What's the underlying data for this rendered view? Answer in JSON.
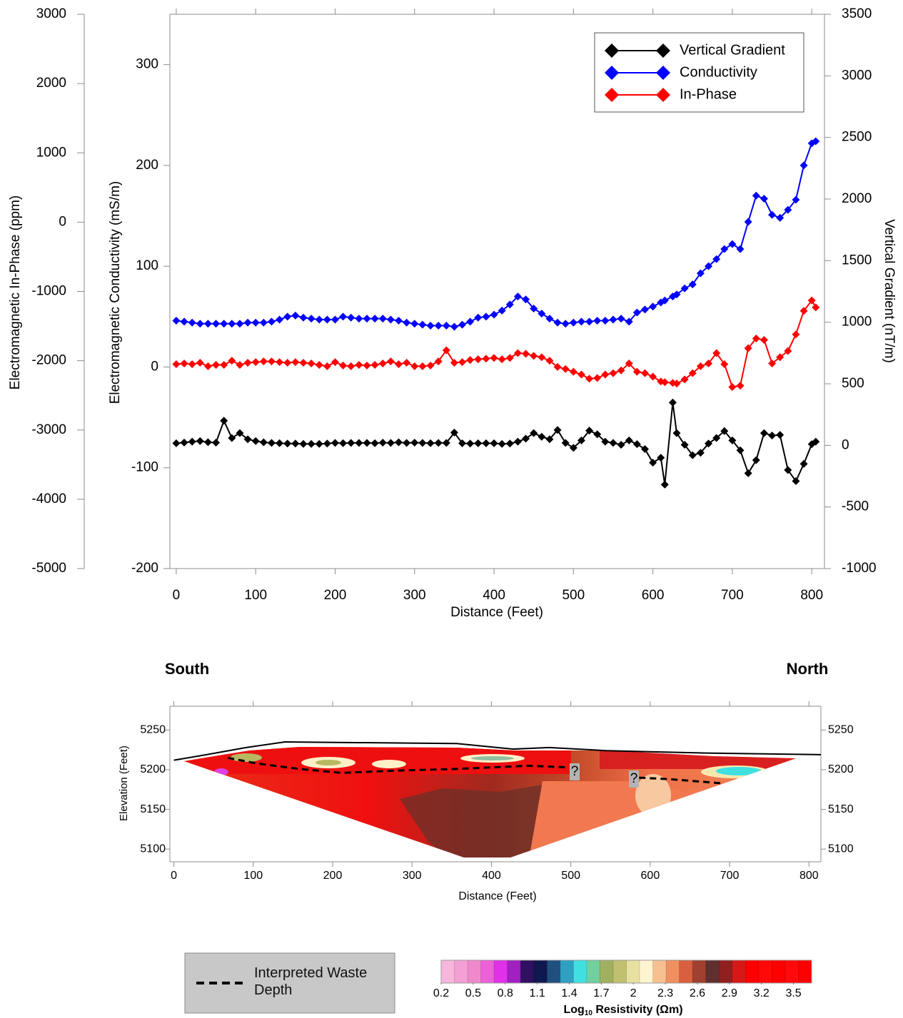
{
  "chart_data": [
    {
      "type": "line",
      "x_label": "Distance (Feet)",
      "y_label": "Electromagnetic Conductivity (mS/m)",
      "y2_label": "Vertical Gradient (nT/m)",
      "y3_label": "Electromagnetic In-Phase (ppm)",
      "x": [
        0,
        10,
        20,
        30,
        40,
        50,
        60,
        70,
        80,
        90,
        100,
        110,
        120,
        130,
        140,
        150,
        160,
        170,
        180,
        190,
        200,
        210,
        220,
        230,
        240,
        250,
        260,
        270,
        280,
        290,
        300,
        310,
        320,
        330,
        340,
        350,
        360,
        370,
        380,
        390,
        400,
        410,
        420,
        430,
        440,
        450,
        460,
        470,
        480,
        490,
        500,
        510,
        520,
        530,
        540,
        550,
        560,
        570,
        580,
        590,
        600,
        610,
        615,
        625,
        630,
        640,
        650,
        660,
        670,
        680,
        690,
        700,
        710,
        720,
        730,
        740,
        750,
        760,
        770,
        780,
        790,
        800,
        805
      ],
      "xlim": [
        -8,
        816
      ],
      "xticks": [
        0,
        100,
        200,
        300,
        400,
        500,
        600,
        700,
        800
      ],
      "ylim": [
        -200,
        350
      ],
      "yticks": [
        -200,
        -100,
        0,
        100,
        200,
        300
      ],
      "y2lim": [
        -1000,
        3500
      ],
      "y2ticks": [
        -1000,
        -500,
        0,
        500,
        1000,
        1500,
        2000,
        2500,
        3000,
        3500
      ],
      "y3lim": [
        -5000,
        3000
      ],
      "y3ticks": [
        -5000,
        -4000,
        -3000,
        -2000,
        -1000,
        0,
        1000,
        2000,
        3000
      ],
      "legend": "upper right",
      "marker": "diamond",
      "series": [
        {
          "name": "Vertical Gradient",
          "color": "#000000",
          "axis": "y2",
          "values": [
            17,
            23,
            30,
            35,
            26,
            22,
            200,
            60,
            100,
            50,
            35,
            25,
            20,
            18,
            15,
            15,
            12,
            12,
            12,
            15,
            20,
            18,
            20,
            20,
            20,
            18,
            22,
            20,
            25,
            20,
            22,
            20,
            18,
            20,
            20,
            104,
            17,
            15,
            17,
            17,
            17,
            12,
            15,
            30,
            55,
            100,
            70,
            50,
            125,
            20,
            -20,
            40,
            120,
            90,
            30,
            20,
            5,
            40,
            10,
            -30,
            -140,
            -100,
            -318,
            348,
            100,
            5,
            -80,
            -60,
            15,
            60,
            116,
            40,
            -40,
            -226,
            -120,
            100,
            80,
            85,
            -200,
            -290,
            -150,
            10,
            30
          ]
        },
        {
          "name": "Conductivity",
          "color": "#0000ff",
          "axis": "y",
          "values": [
            46,
            45,
            44,
            43,
            43,
            43,
            43,
            43,
            43,
            44,
            44,
            44,
            45,
            47,
            50,
            51,
            49,
            48,
            47,
            47,
            47,
            50,
            49,
            48,
            48,
            48,
            48,
            47,
            46,
            44,
            43,
            42,
            41,
            41,
            41,
            40,
            42,
            45,
            49,
            50,
            52,
            56,
            62,
            70,
            67,
            58,
            53,
            48,
            44,
            43,
            44,
            45,
            45,
            46,
            46,
            47,
            48,
            45,
            54,
            57,
            60,
            64,
            66,
            70,
            72,
            78,
            82,
            93,
            100,
            107,
            117,
            122,
            117,
            144,
            170,
            167,
            151,
            148,
            156,
            166,
            200,
            222,
            224
          ]
        },
        {
          "name": "In-Phase",
          "color": "#ff0000",
          "axis": "y3",
          "values": [
            -2050,
            -2040,
            -2050,
            -2030,
            -2080,
            -2060,
            -2060,
            -2000,
            -2060,
            -2030,
            -2020,
            -2010,
            -2010,
            -2020,
            -2030,
            -2020,
            -2030,
            -2040,
            -2060,
            -2080,
            -2020,
            -2070,
            -2080,
            -2060,
            -2070,
            -2060,
            -2040,
            -2010,
            -2050,
            -2030,
            -2080,
            -2080,
            -2070,
            -2010,
            -1850,
            -2030,
            -2020,
            -1990,
            -1980,
            -1970,
            -1960,
            -1980,
            -1960,
            -1890,
            -1900,
            -1930,
            -1950,
            -2000,
            -2090,
            -2120,
            -2160,
            -2200,
            -2260,
            -2250,
            -2200,
            -2180,
            -2140,
            -2040,
            -2160,
            -2180,
            -2230,
            -2300,
            -2310,
            -2320,
            -2330,
            -2270,
            -2180,
            -2080,
            -2040,
            -1890,
            -2050,
            -2380,
            -2360,
            -1820,
            -1680,
            -1700,
            -2040,
            -1950,
            -1860,
            -1620,
            -1280,
            -1130,
            -1230
          ]
        }
      ]
    },
    {
      "type": "section",
      "labels": [
        "South",
        "North"
      ],
      "x_label": "Distance (Feet)",
      "y_label": "Elevation (Feet)",
      "xlim": [
        -5,
        815
      ],
      "xticks": [
        0,
        100,
        200,
        300,
        400,
        500,
        600,
        700,
        800
      ],
      "ylim": [
        5084,
        5280
      ],
      "yticks": [
        5100,
        5150,
        5200,
        5250
      ],
      "series": [
        {
          "color": "#000000",
          "style": "solid",
          "x": [
            0,
            41,
            91,
            140,
            356,
            428,
            473,
            545,
            671,
            815
          ],
          "values": [
            5212,
            5219,
            5228,
            5235,
            5233,
            5226,
            5228,
            5224,
            5221,
            5219
          ]
        },
        {
          "name": "Interpreted Waste Depth",
          "color": "#000000",
          "style": "dashed",
          "x": [
            68,
            104,
            158,
            212,
            284,
            356,
            446,
            496,
            null,
            586,
            626,
            689
          ],
          "values": [
            5215,
            5208,
            5201,
            5196,
            5199,
            5201,
            5205,
            5203,
            null,
            5190,
            5188,
            5183
          ]
        }
      ],
      "annotations": [
        "?",
        "?"
      ],
      "colorbar": {
        "label": [
          "Log",
          "10",
          " Resistivity (Ωm)"
        ],
        "lim": [
          0.2,
          3.67
        ],
        "ticks": [
          0.2,
          0.5,
          0.8,
          1.1,
          1.4,
          1.7,
          2,
          2.3,
          2.6,
          2.9,
          3.2,
          3.5
        ],
        "colors": [
          "#f7b6dc",
          "#f4a0d4",
          "#f088cc",
          "#ec60d8",
          "#e030e8",
          "#a020c0",
          "#301060",
          "#101850",
          "#205080",
          "#30a0c0",
          "#40e0e0",
          "#70d0a0",
          "#a0b060",
          "#c0c070",
          "#e8e0a0",
          "#fff4d0",
          "#f8c090",
          "#f09060",
          "#d86040",
          "#a04030",
          "#603030",
          "#902020",
          "#d81818",
          "#ff0000",
          "#ff0808",
          "#ff0000",
          "#ff0a0a",
          "#ff0000"
        ]
      }
    }
  ]
}
